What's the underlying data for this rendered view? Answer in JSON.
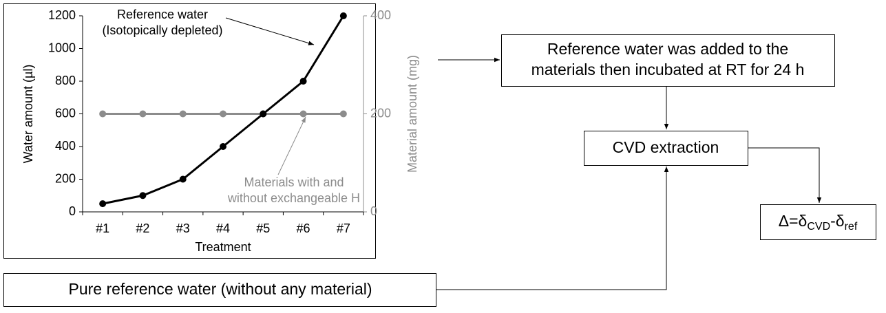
{
  "chart_data": {
    "type": "line",
    "x_label": "Treatment",
    "y_label": "Water amount (µl)",
    "y2_label": "Material amount (mg)",
    "categories": [
      "#1",
      "#2",
      "#3",
      "#4",
      "#5",
      "#6",
      "#7"
    ],
    "series": [
      {
        "name": "Reference water (Isotopically depleted)",
        "color": "#000000",
        "values": [
          50,
          100,
          200,
          400,
          600,
          800,
          1200
        ]
      },
      {
        "name": "Materials with and without exchangeable H",
        "color": "#8c8c8c",
        "axis": "y2",
        "values": [
          200,
          200,
          200,
          200,
          200,
          200,
          200
        ]
      }
    ],
    "ylim": [
      0,
      1200
    ],
    "yticks": [
      0,
      200,
      400,
      600,
      800,
      1000,
      1200
    ],
    "y2lim": [
      0,
      400
    ],
    "y2ticks": [
      0,
      200,
      400
    ],
    "annotations": [
      {
        "lines": [
          "Reference water",
          "(Isotopically depleted)"
        ],
        "color": "#000000"
      },
      {
        "lines": [
          "Materials with and",
          "without exchangeable H"
        ],
        "color": "#8c8c8c"
      }
    ]
  },
  "nodes": [
    {
      "lines": [
        "Reference water was added to the",
        "materials then incubated at RT for 24 h"
      ]
    },
    {
      "lines": [
        "CVD extraction"
      ]
    },
    {
      "parts": [
        "Δ=δ",
        "CVD",
        "-δ",
        "ref"
      ]
    },
    {
      "lines": [
        "Pure reference water (without any material)"
      ]
    }
  ]
}
